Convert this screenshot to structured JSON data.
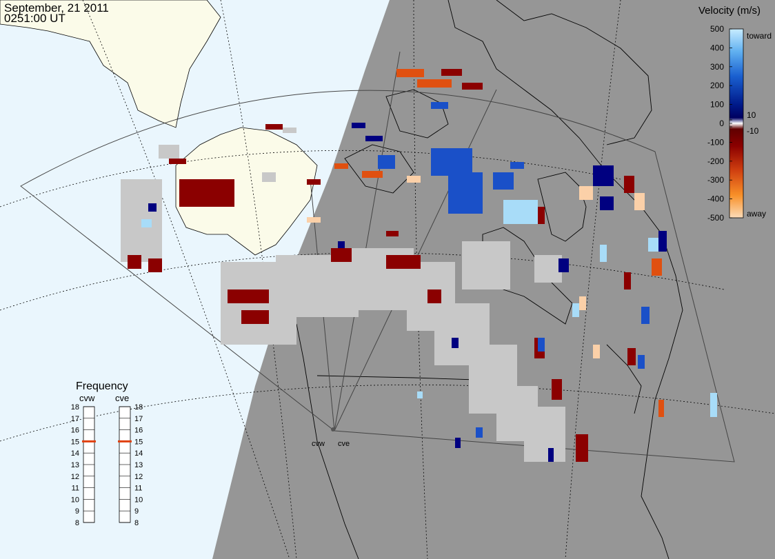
{
  "header": {
    "date": "September, 21 2011",
    "time": "0251:00 UT"
  },
  "colors": {
    "ocean": "#eaf6fd",
    "land": "#fbfbe9",
    "night": "#969696",
    "ground_scatter": "#c8c8c8"
  },
  "velocity_scale": {
    "title": "Velocity (m/s)",
    "top_label": "toward",
    "bottom_label": "away",
    "ticks": [
      "500",
      "400",
      "300",
      "200",
      "100",
      "10",
      "0",
      "-10",
      "-100",
      "-200",
      "-300",
      "-400",
      "-500"
    ]
  },
  "frequency_panel": {
    "title": "Frequency",
    "radars": [
      {
        "name": "cvw",
        "freq_mhz": 15
      },
      {
        "name": "cve",
        "freq_mhz": 15
      }
    ],
    "ticks": [
      "18",
      "17",
      "16",
      "15",
      "14",
      "13",
      "12",
      "11",
      "10",
      "9",
      "8"
    ]
  },
  "radar_site": {
    "labels": [
      "cvw",
      "cve"
    ]
  }
}
